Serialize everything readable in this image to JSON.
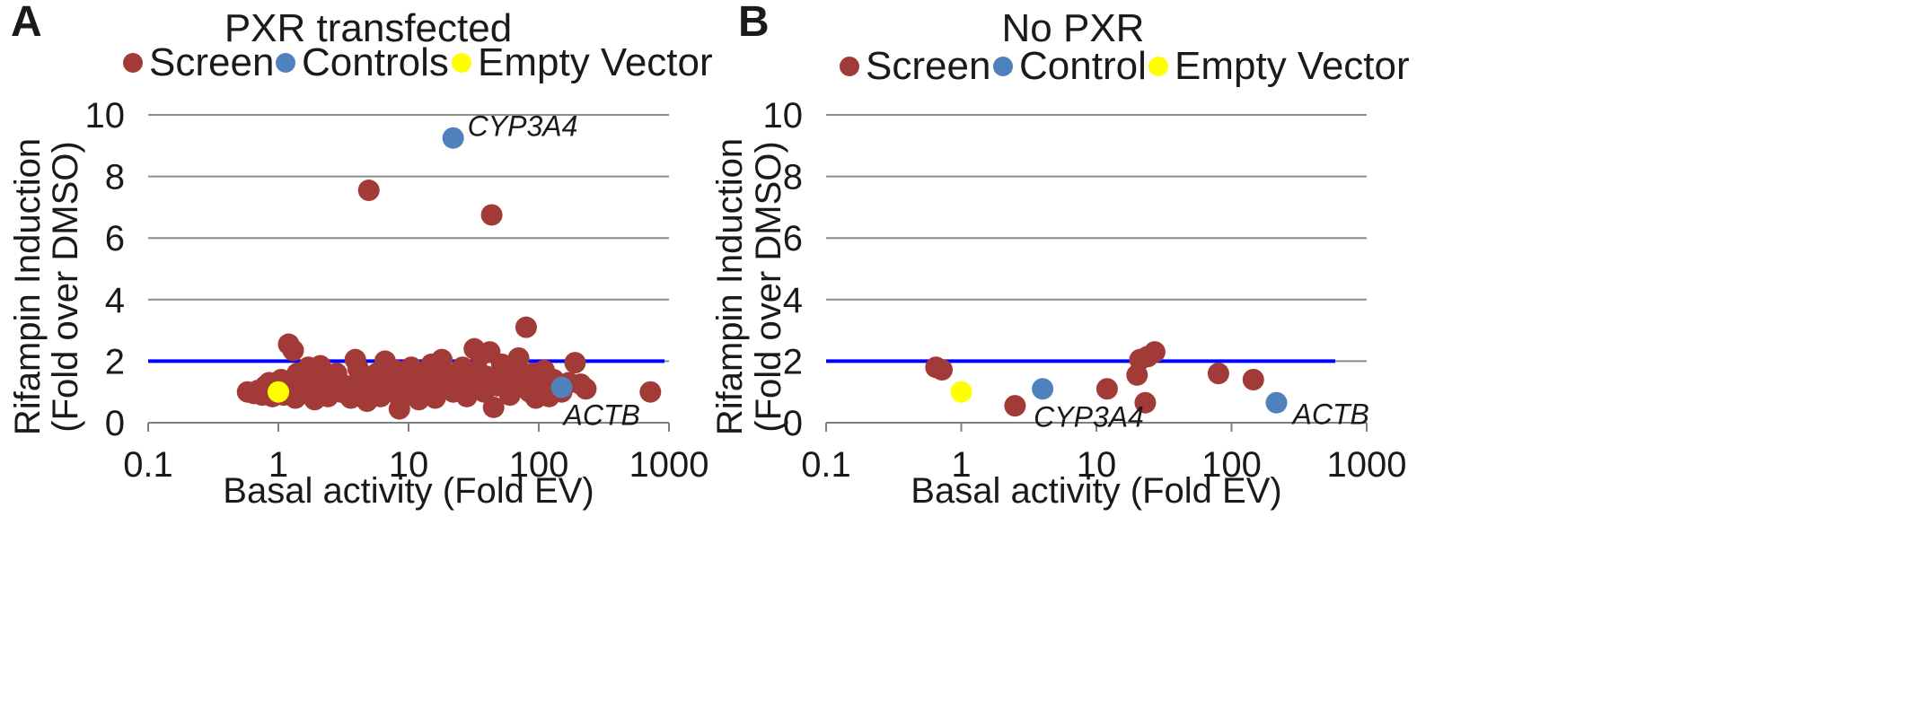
{
  "colors": {
    "screen": "#A23B38",
    "control": "#4F81BD",
    "empty_vector": "#FFFF00",
    "threshold": "#0000FF",
    "grid": "#8C8C8C"
  },
  "chart_data": [
    {
      "type": "scatter",
      "panel": "A",
      "title": "PXR transfected",
      "xlabel": "Basal activity (Fold EV)",
      "ylabel": [
        "Rifampin Induction",
        "(Fold over DMSO)"
      ],
      "xscale": "log",
      "xlim": [
        0.1,
        1000
      ],
      "ylim": [
        0,
        10
      ],
      "xticks": [
        "0.1",
        "1",
        "10",
        "100",
        "1000"
      ],
      "yticks": [
        "0",
        "2",
        "4",
        "6",
        "8",
        "10"
      ],
      "grid": "horizontal",
      "legend_position": "top",
      "threshold_y": 2,
      "series": [
        {
          "name": "Screen",
          "color_key": "screen",
          "points": [
            [
              0.58,
              1.0
            ],
            [
              0.65,
              0.95
            ],
            [
              0.7,
              1.05
            ],
            [
              0.75,
              0.9
            ],
            [
              0.8,
              1.2
            ],
            [
              0.85,
              1.3
            ],
            [
              0.9,
              0.85
            ],
            [
              0.95,
              1.1
            ],
            [
              1.05,
              1.4
            ],
            [
              1.1,
              0.9
            ],
            [
              1.15,
              1.2
            ],
            [
              1.2,
              2.55
            ],
            [
              1.3,
              2.35
            ],
            [
              1.25,
              1.0
            ],
            [
              1.35,
              0.8
            ],
            [
              1.4,
              1.6
            ],
            [
              1.5,
              1.3
            ],
            [
              1.6,
              0.95
            ],
            [
              1.7,
              1.8
            ],
            [
              1.8,
              1.1
            ],
            [
              1.9,
              0.75
            ],
            [
              2.0,
              1.5
            ],
            [
              2.1,
              1.85
            ],
            [
              2.2,
              1.0
            ],
            [
              2.4,
              0.85
            ],
            [
              2.6,
              1.3
            ],
            [
              2.8,
              1.6
            ],
            [
              3.0,
              1.0
            ],
            [
              3.3,
              1.2
            ],
            [
              3.6,
              0.8
            ],
            [
              3.9,
              2.05
            ],
            [
              4.1,
              1.75
            ],
            [
              4.3,
              1.4
            ],
            [
              4.6,
              1.0
            ],
            [
              4.8,
              0.7
            ],
            [
              4.95,
              7.55
            ],
            [
              5.3,
              1.2
            ],
            [
              5.7,
              1.6
            ],
            [
              6.1,
              0.85
            ],
            [
              6.6,
              2.0
            ],
            [
              7.0,
              1.35
            ],
            [
              7.5,
              1.0
            ],
            [
              8.0,
              1.7
            ],
            [
              8.5,
              0.45
            ],
            [
              9.0,
              1.2
            ],
            [
              9.5,
              1.5
            ],
            [
              10.0,
              0.9
            ],
            [
              10.5,
              1.8
            ],
            [
              11.0,
              1.3
            ],
            [
              12.0,
              0.75
            ],
            [
              13.0,
              1.55
            ],
            [
              14.0,
              1.1
            ],
            [
              15.0,
              1.9
            ],
            [
              16.0,
              0.8
            ],
            [
              17.0,
              1.4
            ],
            [
              18.0,
              2.05
            ],
            [
              19.0,
              1.2
            ],
            [
              20.0,
              1.6
            ],
            [
              22.0,
              1.0
            ],
            [
              24.0,
              1.5
            ],
            [
              26.0,
              1.8
            ],
            [
              28.0,
              0.85
            ],
            [
              30.0,
              1.3
            ],
            [
              32.0,
              2.4
            ],
            [
              34.0,
              1.7
            ],
            [
              36.0,
              2.2
            ],
            [
              38.0,
              1.0
            ],
            [
              40.0,
              1.5
            ],
            [
              42.0,
              2.3
            ],
            [
              43.5,
              6.75
            ],
            [
              45.0,
              0.5
            ],
            [
              48.0,
              1.2
            ],
            [
              52.0,
              1.9
            ],
            [
              56.0,
              1.4
            ],
            [
              60.0,
              0.9
            ],
            [
              65.0,
              1.8
            ],
            [
              70.0,
              2.1
            ],
            [
              75.0,
              1.3
            ],
            [
              80.0,
              3.1
            ],
            [
              85.0,
              1.0
            ],
            [
              90.0,
              1.6
            ],
            [
              95.0,
              0.8
            ],
            [
              100.0,
              1.25
            ],
            [
              110.0,
              1.7
            ],
            [
              120.0,
              0.85
            ],
            [
              130.0,
              1.4
            ],
            [
              150.0,
              1.0
            ],
            [
              170.0,
              1.3
            ],
            [
              190.0,
              1.95
            ],
            [
              210.0,
              1.25
            ],
            [
              230.0,
              1.1
            ],
            [
              720.0,
              1.0
            ]
          ]
        },
        {
          "name": "Controls",
          "color_key": "control",
          "points": [
            [
              22.0,
              9.25
            ],
            [
              150.0,
              1.15
            ]
          ]
        },
        {
          "name": "Empty Vector",
          "color_key": "empty_vector",
          "points": [
            [
              1.0,
              1.0
            ]
          ]
        }
      ],
      "annotations": [
        {
          "text": "CYP3A4",
          "x": 22.0,
          "y": 9.25
        },
        {
          "text": "ACTB",
          "x": 150.0,
          "y": 1.15
        }
      ]
    },
    {
      "type": "scatter",
      "panel": "B",
      "title": "No PXR",
      "xlabel": "Basal activity (Fold EV)",
      "ylabel": [
        "Rifampin Induction",
        "(Fold over DMSO)"
      ],
      "xscale": "log",
      "xlim": [
        0.1,
        1000
      ],
      "ylim": [
        0,
        10
      ],
      "xticks": [
        "0.1",
        "1",
        "10",
        "100",
        "1000"
      ],
      "yticks": [
        "0",
        "2",
        "4",
        "6",
        "8",
        "10"
      ],
      "grid": "horizontal",
      "legend_position": "top",
      "threshold_y": 2,
      "series": [
        {
          "name": "Screen",
          "color_key": "screen",
          "points": [
            [
              0.65,
              1.8
            ],
            [
              0.72,
              1.72
            ],
            [
              2.5,
              0.55
            ],
            [
              12.0,
              1.1
            ],
            [
              20.0,
              1.55
            ],
            [
              21.0,
              2.05
            ],
            [
              23.0,
              0.65
            ],
            [
              24.0,
              2.15
            ],
            [
              27.0,
              2.3
            ],
            [
              80.0,
              1.6
            ],
            [
              145.0,
              1.4
            ]
          ]
        },
        {
          "name": "Control",
          "color_key": "control",
          "points": [
            [
              4.0,
              1.1
            ],
            [
              215.0,
              0.65
            ]
          ]
        },
        {
          "name": "Empty Vector",
          "color_key": "empty_vector",
          "points": [
            [
              1.0,
              1.0
            ]
          ]
        }
      ],
      "annotations": [
        {
          "text": "CYP3A4",
          "x": 4.0,
          "y": 1.1
        },
        {
          "text": "ACTB",
          "x": 215.0,
          "y": 0.65
        }
      ]
    }
  ]
}
